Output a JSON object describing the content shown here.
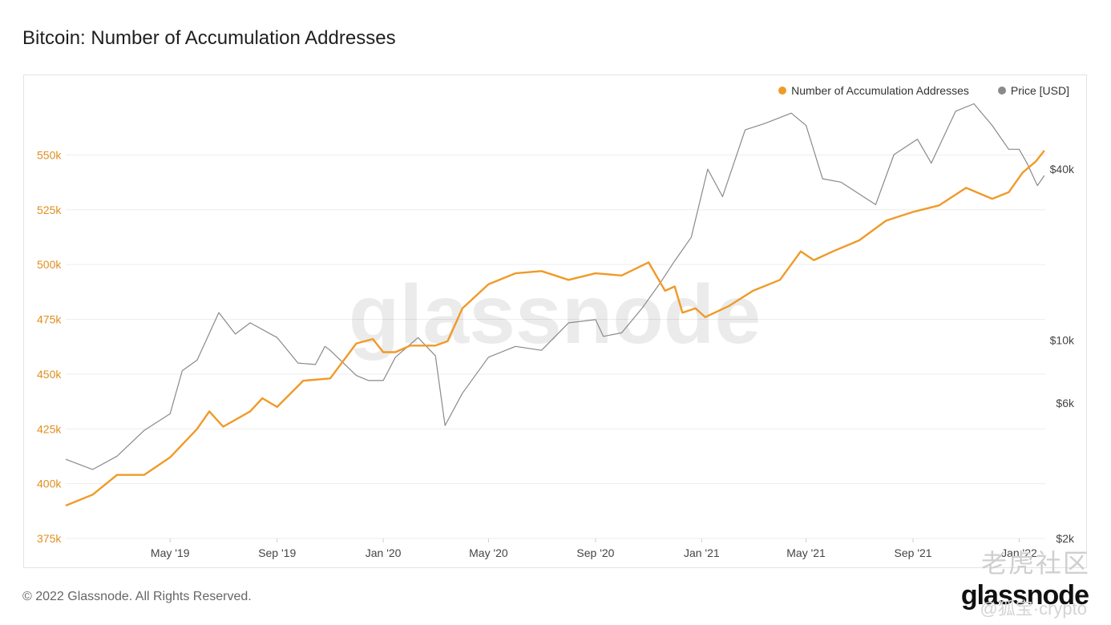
{
  "title": "Bitcoin: Number of Accumulation Addresses",
  "footer": "© 2022 Glassnode. All Rights Reserved.",
  "brand": "glassnode",
  "watermark": {
    "center": "glassnode",
    "corner_cn": "老虎社区",
    "corner_handle": "@狐宝·crypto"
  },
  "colors": {
    "accumulation": "#f09a28",
    "price": "#8a8a8a",
    "left_axis_text": "#e08e1f",
    "grid": "#ededed"
  },
  "chart_data": {
    "type": "line",
    "title": "Bitcoin: Number of Accumulation Addresses",
    "legend_position": "top-right",
    "grid": true,
    "x_ticks": [
      "May '19",
      "Sep '19",
      "Jan '20",
      "May '20",
      "Sep '20",
      "Jan '21",
      "May '21",
      "Sep '21",
      "Jan '22"
    ],
    "x_range": [
      "2019-01-01",
      "2022-01-31"
    ],
    "y_left": {
      "ticks": [
        "375k",
        "400k",
        "425k",
        "450k",
        "475k",
        "500k",
        "525k",
        "550k"
      ],
      "range": [
        375000,
        575000
      ]
    },
    "y_right": {
      "scale": "log",
      "ticks": [
        "$2k",
        "$6k",
        "$10k",
        "$40k"
      ],
      "range": [
        2000,
        70000
      ]
    },
    "series": [
      {
        "name": "Number of Accumulation Addresses",
        "axis": "left",
        "points": [
          [
            "2019-01-01",
            390000
          ],
          [
            "2019-02-01",
            395000
          ],
          [
            "2019-03-01",
            404000
          ],
          [
            "2019-04-01",
            404000
          ],
          [
            "2019-05-01",
            412000
          ],
          [
            "2019-06-01",
            425000
          ],
          [
            "2019-06-15",
            433000
          ],
          [
            "2019-07-01",
            426000
          ],
          [
            "2019-08-01",
            433000
          ],
          [
            "2019-08-15",
            439000
          ],
          [
            "2019-09-01",
            435000
          ],
          [
            "2019-10-01",
            447000
          ],
          [
            "2019-11-01",
            448000
          ],
          [
            "2019-12-01",
            464000
          ],
          [
            "2019-12-20",
            466000
          ],
          [
            "2020-01-01",
            460000
          ],
          [
            "2020-01-15",
            460000
          ],
          [
            "2020-02-01",
            463000
          ],
          [
            "2020-03-01",
            463000
          ],
          [
            "2020-03-15",
            465000
          ],
          [
            "2020-04-01",
            480000
          ],
          [
            "2020-05-01",
            491000
          ],
          [
            "2020-06-01",
            496000
          ],
          [
            "2020-07-01",
            497000
          ],
          [
            "2020-08-01",
            493000
          ],
          [
            "2020-09-01",
            496000
          ],
          [
            "2020-10-01",
            495000
          ],
          [
            "2020-11-01",
            501000
          ],
          [
            "2020-11-20",
            488000
          ],
          [
            "2020-12-01",
            490000
          ],
          [
            "2020-12-10",
            478000
          ],
          [
            "2020-12-25",
            480000
          ],
          [
            "2021-01-05",
            476000
          ],
          [
            "2021-02-01",
            481000
          ],
          [
            "2021-03-01",
            488000
          ],
          [
            "2021-04-01",
            493000
          ],
          [
            "2021-04-25",
            506000
          ],
          [
            "2021-05-10",
            502000
          ],
          [
            "2021-06-01",
            506000
          ],
          [
            "2021-07-01",
            511000
          ],
          [
            "2021-08-01",
            520000
          ],
          [
            "2021-09-01",
            524000
          ],
          [
            "2021-10-01",
            527000
          ],
          [
            "2021-11-01",
            535000
          ],
          [
            "2021-12-01",
            530000
          ],
          [
            "2021-12-20",
            533000
          ],
          [
            "2022-01-05",
            542000
          ],
          [
            "2022-01-20",
            547000
          ],
          [
            "2022-01-30",
            552000
          ]
        ]
      },
      {
        "name": "Price [USD]",
        "axis": "right",
        "points": [
          [
            "2019-01-01",
            3800
          ],
          [
            "2019-02-01",
            3500
          ],
          [
            "2019-03-01",
            3900
          ],
          [
            "2019-04-01",
            4800
          ],
          [
            "2019-05-01",
            5500
          ],
          [
            "2019-05-15",
            7800
          ],
          [
            "2019-06-01",
            8500
          ],
          [
            "2019-06-26",
            12500
          ],
          [
            "2019-07-15",
            10500
          ],
          [
            "2019-08-01",
            11500
          ],
          [
            "2019-09-01",
            10200
          ],
          [
            "2019-09-25",
            8300
          ],
          [
            "2019-10-15",
            8200
          ],
          [
            "2019-10-26",
            9500
          ],
          [
            "2019-11-01",
            9200
          ],
          [
            "2019-12-01",
            7500
          ],
          [
            "2019-12-15",
            7200
          ],
          [
            "2020-01-01",
            7200
          ],
          [
            "2020-01-15",
            8700
          ],
          [
            "2020-02-10",
            10200
          ],
          [
            "2020-03-01",
            8800
          ],
          [
            "2020-03-12",
            5000
          ],
          [
            "2020-04-01",
            6500
          ],
          [
            "2020-05-01",
            8700
          ],
          [
            "2020-06-01",
            9500
          ],
          [
            "2020-07-01",
            9200
          ],
          [
            "2020-08-01",
            11500
          ],
          [
            "2020-09-01",
            11800
          ],
          [
            "2020-09-10",
            10300
          ],
          [
            "2020-10-01",
            10600
          ],
          [
            "2020-10-25",
            13000
          ],
          [
            "2020-11-15",
            16000
          ],
          [
            "2020-12-01",
            19000
          ],
          [
            "2020-12-20",
            23000
          ],
          [
            "2021-01-08",
            40000
          ],
          [
            "2021-01-25",
            32000
          ],
          [
            "2021-02-20",
            55000
          ],
          [
            "2021-03-15",
            58000
          ],
          [
            "2021-04-14",
            63000
          ],
          [
            "2021-05-01",
            57000
          ],
          [
            "2021-05-20",
            37000
          ],
          [
            "2021-06-10",
            36000
          ],
          [
            "2021-07-20",
            30000
          ],
          [
            "2021-08-10",
            45000
          ],
          [
            "2021-09-06",
            51000
          ],
          [
            "2021-09-22",
            42000
          ],
          [
            "2021-10-20",
            64000
          ],
          [
            "2021-11-10",
            68000
          ],
          [
            "2021-12-01",
            57000
          ],
          [
            "2021-12-20",
            47000
          ],
          [
            "2022-01-01",
            47000
          ],
          [
            "2022-01-10",
            42000
          ],
          [
            "2022-01-22",
            35000
          ],
          [
            "2022-01-30",
            38000
          ]
        ]
      }
    ]
  }
}
